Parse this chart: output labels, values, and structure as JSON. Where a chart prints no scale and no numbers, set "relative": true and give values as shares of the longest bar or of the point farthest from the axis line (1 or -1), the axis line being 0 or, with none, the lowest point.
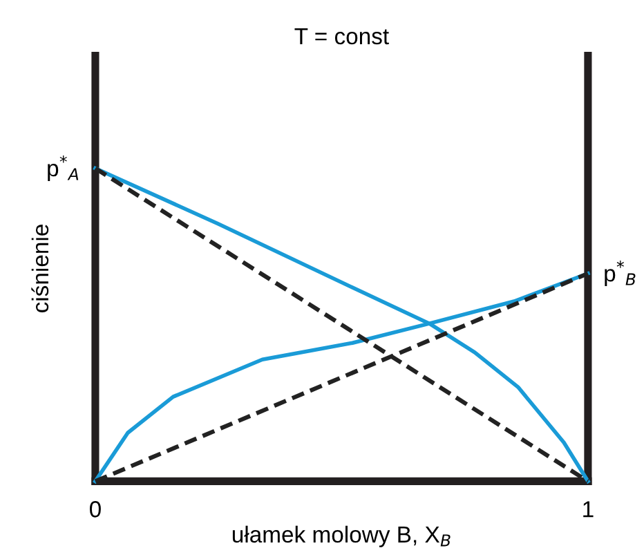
{
  "chart_data": {
    "type": "line",
    "title": "T = const",
    "xlabel": "ułamek molowy B, X$_{B}$",
    "ylabel": "ciśnienie",
    "relative": true,
    "xlim": [
      0,
      1
    ],
    "xticks": [
      0,
      1
    ],
    "series": [
      {
        "color": "#1a9bd7",
        "line_style": "solid",
        "x": [
          0,
          0.249,
          0.522,
          0.678,
          0.77,
          0.858,
          0.951,
          1
        ],
        "values": [
          1,
          0.823,
          0.619,
          0.504,
          0.412,
          0.301,
          0.124,
          0
        ]
      },
      {
        "color": "#1a9bd7",
        "line_style": "solid",
        "x": [
          0,
          0.066,
          0.158,
          0.339,
          0.522,
          0.678,
          0.85,
          1
        ],
        "values": [
          0,
          0.155,
          0.27,
          0.389,
          0.442,
          0.504,
          0.575,
          0.664
        ]
      },
      {
        "color": "#222222",
        "line_style": "dashed",
        "x": [
          0,
          1
        ],
        "values": [
          1,
          0
        ]
      },
      {
        "color": "#222222",
        "line_style": "dashed",
        "x": [
          0,
          1
        ],
        "values": [
          0,
          0.664
        ]
      }
    ],
    "annotations": [
      {
        "text": "p$^{*}$$_{A}$",
        "x": 0,
        "y": 1
      },
      {
        "text": "p$^{*}$$_{B}$",
        "x": 1,
        "y": 0.664
      }
    ]
  }
}
